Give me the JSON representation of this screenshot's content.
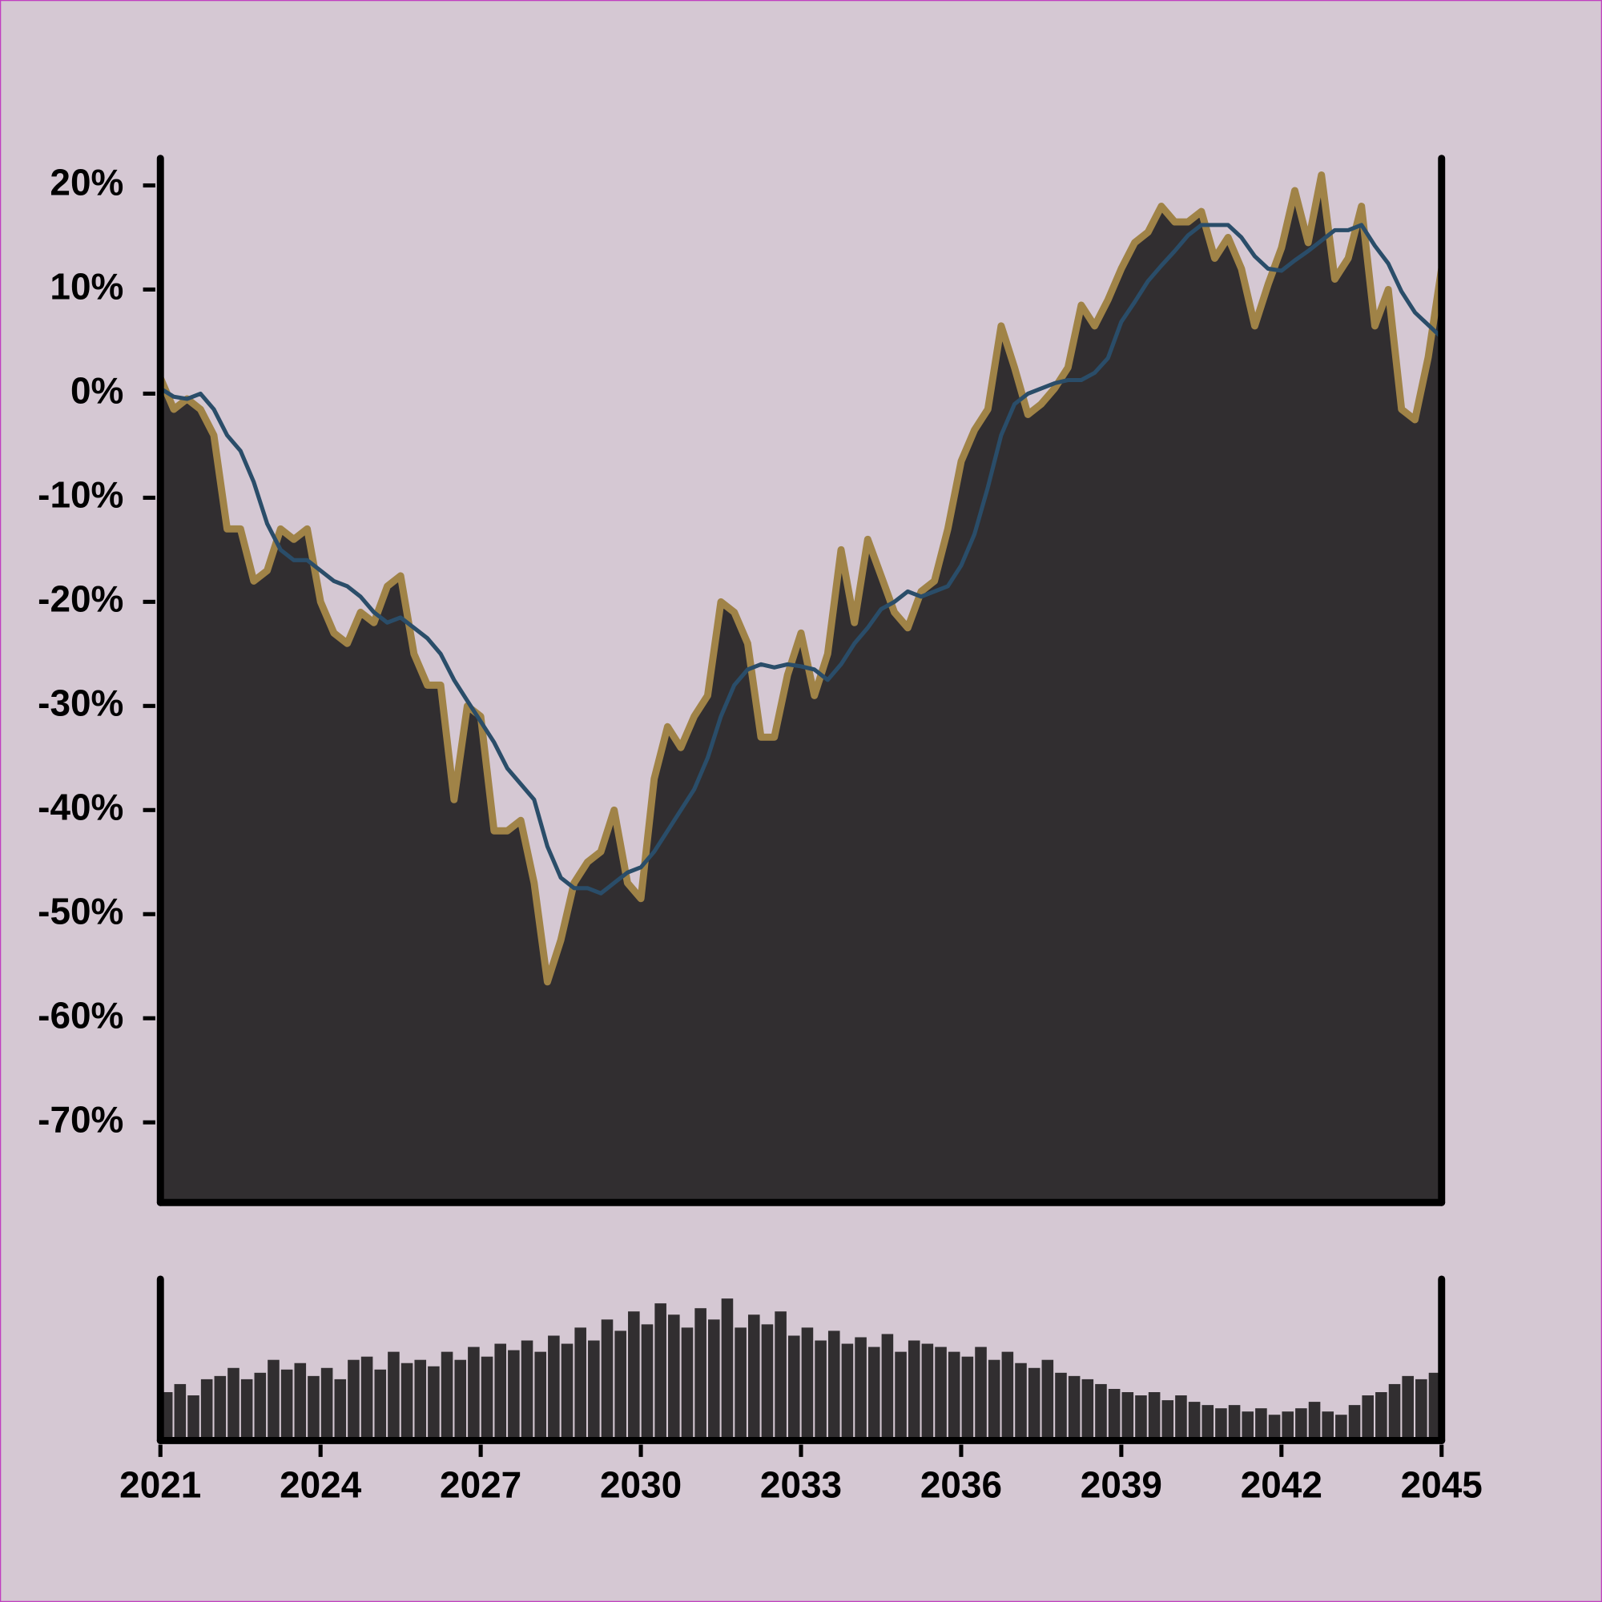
{
  "chart_data": [
    {
      "type": "area",
      "x": [
        2021,
        2021.25,
        2021.5,
        2021.75,
        2022,
        2022.25,
        2022.5,
        2022.75,
        2023,
        2023.25,
        2023.5,
        2023.75,
        2024,
        2024.25,
        2024.5,
        2024.75,
        2025,
        2025.25,
        2025.5,
        2025.75,
        2026,
        2026.25,
        2026.5,
        2026.75,
        2027,
        2027.25,
        2027.5,
        2027.75,
        2028,
        2028.25,
        2028.5,
        2028.75,
        2029,
        2029.25,
        2029.5,
        2029.75,
        2030,
        2030.25,
        2030.5,
        2030.75,
        2031,
        2031.25,
        2031.5,
        2031.75,
        2032,
        2032.25,
        2032.5,
        2032.75,
        2033,
        2033.25,
        2033.5,
        2033.75,
        2034,
        2034.25,
        2034.5,
        2034.75,
        2035,
        2035.25,
        2035.5,
        2035.75,
        2036,
        2036.25,
        2036.5,
        2036.75,
        2037,
        2037.25,
        2037.5,
        2037.75,
        2038,
        2038.25,
        2038.5,
        2038.75,
        2039,
        2039.25,
        2039.5,
        2039.75,
        2040,
        2040.25,
        2040.5,
        2040.75,
        2041,
        2041.25,
        2041.5,
        2041.75,
        2042,
        2042.25,
        2042.5,
        2042.75,
        2043,
        2043.25,
        2043.5,
        2043.75,
        2044,
        2044.25,
        2044.5,
        2044.75,
        2045
      ],
      "xlim": [
        2021,
        2045
      ],
      "ylim": [
        -77.7,
        22.6
      ],
      "yticks": [
        {
          "value": 20,
          "label": "20%"
        },
        {
          "value": 10,
          "label": "10%"
        },
        {
          "value": 0,
          "label": "0%"
        },
        {
          "value": -10,
          "label": "-10%"
        },
        {
          "value": -20,
          "label": "-20%"
        },
        {
          "value": -30,
          "label": "-30%"
        },
        {
          "value": -40,
          "label": "-40%"
        },
        {
          "value": -50,
          "label": "-50%"
        },
        {
          "value": -60,
          "label": "-60%"
        },
        {
          "value": -70,
          "label": "-70%"
        }
      ],
      "fill": "#312e30",
      "series": [
        {
          "color": "#a08347",
          "values": [
            1.5,
            -1.5,
            -0.5,
            -1.5,
            -4,
            -13,
            -13,
            -18,
            -17,
            -13,
            -14,
            -13,
            -20,
            -23,
            -24,
            -21,
            -22,
            -18.5,
            -17.5,
            -25,
            -28,
            -28,
            -39,
            -30,
            -31,
            -42,
            -42,
            -41,
            -47,
            -56.5,
            -52.5,
            -47,
            -45,
            -44,
            -40,
            -47,
            -48.5,
            -37,
            -32,
            -34,
            -31,
            -29,
            -20,
            -21,
            -24,
            -33,
            -33,
            -27,
            -23,
            -29,
            -25,
            -15,
            -22,
            -14,
            -17.5,
            -21,
            -22.5,
            -19,
            -18,
            -13,
            -6.5,
            -3.5,
            -1.5,
            6.5,
            2.5,
            -2,
            -1,
            0.5,
            2.5,
            8.5,
            6.5,
            9,
            12,
            14.5,
            15.5,
            18,
            16.5,
            16.5,
            17.5,
            13,
            15,
            12,
            6.5,
            10.5,
            14,
            19.5,
            14.5,
            21,
            11,
            13,
            18,
            6.5,
            10,
            -1.5,
            -2.5,
            3.5,
            12
          ]
        },
        {
          "color": "#2a4d69",
          "values": [
            0.5,
            -0.3,
            -0.5,
            0,
            -1.5,
            -4,
            -5.5,
            -8.5,
            -12.5,
            -15,
            -16,
            -16,
            -17,
            -18,
            -18.5,
            -19.5,
            -21,
            -22,
            -21.5,
            -22.5,
            -23.5,
            -25,
            -27.5,
            -29.5,
            -31.5,
            -33.5,
            -36,
            -37.5,
            -39,
            -43.5,
            -46.5,
            -47.5,
            -47.5,
            -48,
            -47,
            -46,
            -45.5,
            -44,
            -42,
            -40,
            -38,
            -35,
            -31,
            -28,
            -26.5,
            -26,
            -26.3,
            -26,
            -26.2,
            -26.5,
            -27.5,
            -26,
            -24,
            -22.5,
            -20.7,
            -20,
            -19,
            -19.5,
            -19,
            -18.5,
            -16.5,
            -13.5,
            -9,
            -4,
            -1,
            0,
            0.5,
            1,
            1.3,
            1.3,
            2,
            3.4,
            6.9,
            8.8,
            10.8,
            12.3,
            13.7,
            15.2,
            16.2,
            16.2,
            16.2,
            15,
            13.2,
            12,
            11.8,
            12.8,
            13.7,
            14.7,
            15.7,
            15.7,
            16.2,
            14.2,
            12.5,
            9.8,
            7.8,
            6.6,
            5.4
          ]
        }
      ]
    },
    {
      "type": "bar",
      "x": [
        2021,
        2021.25,
        2021.5,
        2021.75,
        2022,
        2022.25,
        2022.5,
        2022.75,
        2023,
        2023.25,
        2023.5,
        2023.75,
        2024,
        2024.25,
        2024.5,
        2024.75,
        2025,
        2025.25,
        2025.5,
        2025.75,
        2026,
        2026.25,
        2026.5,
        2026.75,
        2027,
        2027.25,
        2027.5,
        2027.75,
        2028,
        2028.25,
        2028.5,
        2028.75,
        2029,
        2029.25,
        2029.5,
        2029.75,
        2030,
        2030.25,
        2030.5,
        2030.75,
        2031,
        2031.25,
        2031.5,
        2031.75,
        2032,
        2032.25,
        2032.5,
        2032.75,
        2033,
        2033.25,
        2033.5,
        2033.75,
        2034,
        2034.25,
        2034.5,
        2034.75,
        2035,
        2035.25,
        2035.5,
        2035.75,
        2036,
        2036.25,
        2036.5,
        2036.75,
        2037,
        2037.25,
        2037.5,
        2037.75,
        2038,
        2038.25,
        2038.5,
        2038.75,
        2039,
        2039.25,
        2039.5,
        2039.75,
        2040,
        2040.25,
        2040.5,
        2040.75,
        2041,
        2041.25,
        2041.5,
        2041.75,
        2042,
        2042.25,
        2042.5,
        2042.75,
        2043,
        2043.25,
        2043.5,
        2043.75,
        2044,
        2044.25,
        2044.5,
        2044.75,
        2045
      ],
      "xlim": [
        2021,
        2045
      ],
      "xticks": [
        2021,
        2024,
        2027,
        2030,
        2033,
        2036,
        2039,
        2042,
        2045
      ],
      "ylim": [
        0,
        100
      ],
      "color": "#312e30",
      "values": [
        30,
        35,
        28,
        38,
        40,
        45,
        38,
        42,
        50,
        44,
        48,
        40,
        45,
        38,
        50,
        52,
        44,
        55,
        48,
        50,
        46,
        55,
        50,
        58,
        52,
        60,
        56,
        62,
        55,
        65,
        60,
        70,
        62,
        75,
        68,
        80,
        72,
        85,
        78,
        70,
        82,
        75,
        88,
        70,
        78,
        72,
        80,
        65,
        70,
        62,
        68,
        60,
        64,
        58,
        66,
        55,
        62,
        60,
        58,
        55,
        52,
        58,
        50,
        55,
        48,
        45,
        50,
        42,
        40,
        38,
        35,
        32,
        30,
        28,
        30,
        25,
        28,
        24,
        22,
        20,
        22,
        18,
        20,
        16,
        18,
        20,
        24,
        18,
        16,
        22,
        28,
        30,
        35,
        40,
        38,
        42,
        36
      ]
    }
  ]
}
